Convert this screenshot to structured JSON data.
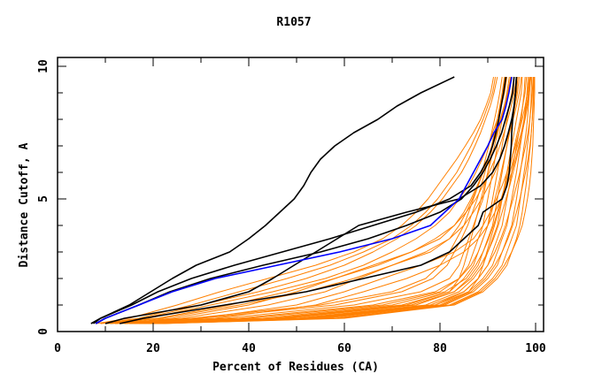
{
  "chart_data": {
    "type": "line",
    "title": "R1057",
    "xlabel": "Percent of Residues (CA)",
    "ylabel": "Distance Cutoff, A",
    "xlim": [
      0,
      101.5
    ],
    "ylim": [
      0,
      10
    ],
    "x_ticks": [
      0,
      20,
      40,
      60,
      80,
      100
    ],
    "x_tick_labels": [
      "0",
      "20",
      "40",
      "60",
      "80",
      "100"
    ],
    "x_minor_step": 10,
    "y_ticks": [
      0,
      5,
      10
    ],
    "y_tick_labels": [
      "0",
      "5",
      "10"
    ],
    "y_minor_step": 1,
    "grid": false,
    "legend": "none",
    "colors": {
      "orange": "#ff8000",
      "black": "#000000",
      "blue": "#0000ff"
    },
    "y_levels": [
      0.3,
      0.5,
      1,
      1.5,
      2,
      2.5,
      3,
      3.5,
      4,
      4.5,
      5,
      5.5,
      6,
      6.5,
      7,
      7.5,
      8,
      8.5,
      9,
      9.6
    ],
    "series": [
      {
        "name": "orange-01",
        "color": "orange",
        "x": [
          12,
          35,
          62,
          76,
          82,
          84,
          85,
          86,
          87,
          88,
          89,
          89.5,
          90,
          90.5,
          91,
          91.5,
          92,
          92.5,
          93,
          93.5
        ]
      },
      {
        "name": "orange-02",
        "color": "orange",
        "x": [
          14,
          40,
          68,
          80,
          84,
          86,
          87,
          88,
          89,
          89.5,
          90,
          90.5,
          91,
          91.5,
          92,
          92.5,
          93,
          93.5,
          94,
          94.5
        ]
      },
      {
        "name": "orange-03",
        "color": "orange",
        "x": [
          15,
          45,
          72,
          82,
          85,
          87,
          88,
          89,
          90,
          90.5,
          91,
          91.5,
          92,
          92.5,
          93,
          93.5,
          94,
          94.5,
          95,
          95.5
        ]
      },
      {
        "name": "orange-04",
        "color": "orange",
        "x": [
          16,
          48,
          75,
          83,
          86,
          88,
          89,
          90,
          91,
          91.5,
          92,
          92.5,
          93,
          93.5,
          94,
          94.5,
          95,
          95.5,
          96,
          96.3
        ]
      },
      {
        "name": "orange-05",
        "color": "orange",
        "x": [
          17,
          50,
          77,
          84,
          87,
          89,
          90,
          91,
          92,
          92.5,
          93,
          93.5,
          94,
          94.5,
          95,
          95.5,
          96,
          96.5,
          97,
          97.2
        ]
      },
      {
        "name": "orange-06",
        "color": "orange",
        "x": [
          18,
          52,
          79,
          85,
          88,
          90,
          91,
          92,
          93,
          93.5,
          94,
          94.5,
          95,
          95.5,
          96,
          96.5,
          97,
          97.3,
          97.6,
          97.8
        ]
      },
      {
        "name": "orange-07",
        "color": "orange",
        "x": [
          19,
          54,
          80,
          86,
          89,
          91,
          92,
          93,
          94,
          94.5,
          95,
          95.5,
          96,
          96.4,
          96.8,
          97.2,
          97.6,
          97.9,
          98.2,
          98.4
        ]
      },
      {
        "name": "orange-08",
        "color": "orange",
        "x": [
          20,
          56,
          81,
          87,
          90,
          92,
          93,
          94,
          95,
          95.5,
          96,
          96.4,
          96.8,
          97.2,
          97.6,
          98,
          98.3,
          98.5,
          98.7,
          98.9
        ]
      },
      {
        "name": "orange-09",
        "color": "orange",
        "x": [
          21,
          58,
          82,
          88,
          91,
          93,
          94,
          95,
          96,
          96.4,
          96.8,
          97.2,
          97.6,
          98,
          98.3,
          98.6,
          98.8,
          99,
          99.1,
          99.2
        ]
      },
      {
        "name": "orange-10",
        "color": "orange",
        "x": [
          22,
          60,
          83,
          89,
          92,
          94,
          95,
          96,
          96.7,
          97.2,
          97.6,
          98,
          98.3,
          98.6,
          98.9,
          99.1,
          99.3,
          99.4,
          99.5,
          99.6
        ]
      },
      {
        "name": "orange-11",
        "color": "orange",
        "x": [
          13,
          38,
          66,
          79,
          84,
          86.5,
          88,
          89,
          90,
          90.8,
          91.5,
          92.2,
          92.8,
          93.4,
          94,
          94.6,
          95.2,
          95.7,
          96.2,
          96.6
        ]
      },
      {
        "name": "orange-12",
        "color": "orange",
        "x": [
          15,
          43,
          70,
          81,
          85.5,
          87.5,
          89,
          90.2,
          91.2,
          92,
          92.8,
          93.6,
          94.3,
          95,
          95.6,
          96.2,
          96.8,
          97.3,
          97.8,
          98.1
        ]
      },
      {
        "name": "orange-13",
        "color": "orange",
        "x": [
          17,
          47,
          74,
          83,
          86.5,
          88.5,
          90,
          91.2,
          92.2,
          93,
          93.8,
          94.6,
          95.3,
          96,
          96.6,
          97.2,
          97.7,
          98.1,
          98.5,
          98.8
        ]
      },
      {
        "name": "orange-14",
        "color": "orange",
        "x": [
          19,
          51,
          78,
          85,
          88,
          90,
          91.5,
          92.7,
          93.7,
          94.5,
          95.3,
          96,
          96.7,
          97.3,
          97.9,
          98.4,
          98.8,
          99.1,
          99.3,
          99.5
        ]
      },
      {
        "name": "orange-15",
        "color": "orange",
        "x": [
          20,
          55,
          80.5,
          86.5,
          89.5,
          91.5,
          93,
          94.2,
          95.2,
          96,
          96.7,
          97.3,
          97.9,
          98.4,
          98.8,
          99.1,
          99.3,
          99.5,
          99.6,
          99.7
        ]
      },
      {
        "name": "orange-16",
        "color": "orange",
        "x": [
          10,
          28,
          55,
          70,
          77,
          80,
          82,
          83.5,
          85,
          86,
          87,
          88,
          88.8,
          89.5,
          90.2,
          90.8,
          91.4,
          92,
          92.5,
          93
        ]
      },
      {
        "name": "orange-17",
        "color": "orange",
        "x": [
          11,
          30,
          58,
          72,
          78.5,
          81.5,
          83,
          84.5,
          85.8,
          86.8,
          87.8,
          88.6,
          89.4,
          90.1,
          90.8,
          91.4,
          92,
          92.6,
          93.1,
          93.6
        ]
      },
      {
        "name": "orange-18",
        "color": "orange",
        "x": [
          12,
          26,
          44,
          56,
          63,
          70,
          78,
          82,
          84,
          85.5,
          86.8,
          88,
          89,
          90,
          91,
          92,
          92.8,
          93.6,
          94.4,
          95
        ]
      },
      {
        "name": "orange-19",
        "color": "orange",
        "x": [
          13,
          24,
          40,
          50,
          58,
          66,
          74,
          80,
          83,
          85,
          86.5,
          87.8,
          89,
          90,
          91,
          91.8,
          92.6,
          93.4,
          94.2,
          94.8
        ]
      },
      {
        "name": "orange-20",
        "color": "orange",
        "x": [
          14,
          30,
          50,
          60,
          68,
          76,
          83,
          87,
          89,
          90.5,
          91.8,
          93,
          94,
          95,
          95.8,
          96.5,
          97.2,
          97.8,
          98.3,
          98.7
        ]
      },
      {
        "name": "orange-21",
        "color": "orange",
        "x": [
          15,
          33,
          54,
          64,
          73,
          80,
          85,
          88,
          90,
          91.5,
          92.8,
          94,
          95,
          95.8,
          96.5,
          97.2,
          97.8,
          98.3,
          98.7,
          99
        ]
      },
      {
        "name": "orange-22",
        "color": "orange",
        "x": [
          9,
          18,
          30,
          42,
          52,
          60,
          66,
          71,
          75,
          78,
          80.5,
          82.5,
          84.5,
          86,
          87.3,
          88.5,
          89.5,
          90.5,
          91.3,
          92
        ]
      },
      {
        "name": "orange-23",
        "color": "orange",
        "x": [
          9,
          17,
          28,
          38,
          48,
          57,
          64,
          70,
          74,
          77,
          79.5,
          81.5,
          83.5,
          85,
          86.5,
          87.8,
          89,
          90,
          91,
          91.6
        ]
      },
      {
        "name": "orange-24",
        "color": "orange",
        "x": [
          10,
          19,
          32,
          45,
          56,
          64,
          70,
          75,
          79,
          82,
          84,
          86,
          87.5,
          88.8,
          90,
          91,
          92,
          92.8,
          93.5,
          94
        ]
      },
      {
        "name": "orange-25",
        "color": "orange",
        "x": [
          8,
          15,
          25,
          34,
          44,
          54,
          62,
          68,
          72,
          75,
          77.5,
          79.5,
          81.5,
          83.5,
          85.3,
          87,
          88.5,
          89.6,
          90.6,
          91.2
        ]
      },
      {
        "name": "orange-26",
        "color": "orange",
        "x": [
          10,
          21,
          36,
          48,
          58,
          67,
          74,
          79,
          83,
          85.5,
          87.5,
          89,
          90.3,
          91.5,
          92.5,
          93.4,
          94.2,
          94.9,
          95.5,
          96
        ]
      },
      {
        "name": "orange-27",
        "color": "orange",
        "x": [
          11,
          22,
          38,
          52,
          62,
          70,
          77,
          82,
          85,
          87,
          88.7,
          90.2,
          91.5,
          92.6,
          93.6,
          94.5,
          95.3,
          96,
          96.6,
          97
        ]
      },
      {
        "name": "orange-28",
        "color": "orange",
        "x": [
          16,
          46,
          73,
          82,
          84,
          85,
          85.8,
          86.5,
          87.2,
          87.9,
          88.6,
          89.3,
          90,
          90.7,
          91.4,
          92.1,
          92.8,
          93.5,
          94.2,
          94.8
        ]
      },
      {
        "name": "orange-29",
        "color": "orange",
        "x": [
          18,
          53,
          79,
          86,
          88,
          89,
          89.8,
          90.6,
          91.4,
          92.2,
          93,
          93.8,
          94.6,
          95.4,
          96.2,
          97,
          97.6,
          98.1,
          98.6,
          99
        ]
      },
      {
        "name": "orange-30",
        "color": "orange",
        "x": [
          21,
          59,
          82.5,
          88.5,
          91.5,
          93.5,
          95,
          96.2,
          97.2,
          97.8,
          98.3,
          98.7,
          99,
          99.2,
          99.4,
          99.5,
          99.6,
          99.7,
          99.8,
          99.8
        ]
      },
      {
        "name": "black-outlier",
        "color": "black",
        "x": [
          7,
          9,
          15,
          19.5,
          24,
          29,
          36,
          40,
          43.5,
          46.5,
          49.5,
          51.5,
          53,
          55,
          58,
          62,
          67,
          71,
          76,
          83
        ]
      },
      {
        "name": "black-2",
        "color": "black",
        "x": [
          7.5,
          9,
          15.5,
          21,
          28,
          37,
          47,
          57,
          66,
          75,
          82,
          86.5,
          88.5,
          90,
          91,
          91.7,
          92.3,
          92.8,
          93.3,
          93.8
        ]
      },
      {
        "name": "black-3",
        "color": "black",
        "x": [
          8,
          10,
          17,
          23.5,
          32,
          43,
          55,
          65,
          73,
          80,
          84.5,
          87,
          89,
          90.5,
          91.8,
          92.9,
          93.7,
          94.5,
          95.2,
          95.5
        ]
      },
      {
        "name": "black-4",
        "color": "black",
        "x": [
          10,
          14,
          30,
          40,
          45,
          49.5,
          54,
          58.5,
          63,
          73,
          84,
          88.5,
          91,
          92.5,
          93.5,
          94.3,
          95,
          95.5,
          95.8,
          96
        ]
      },
      {
        "name": "black-5",
        "color": "black",
        "x": [
          13,
          18,
          35,
          52,
          64,
          76,
          82,
          85,
          88,
          89,
          93,
          94,
          94.5,
          94.7,
          94.9,
          95,
          95.2,
          95.5,
          95.8,
          96
        ]
      },
      {
        "name": "blue",
        "color": "blue",
        "x": [
          8,
          10,
          17,
          24,
          33,
          46,
          59,
          70,
          78,
          81,
          84,
          85.5,
          87,
          88.5,
          90,
          91.3,
          93,
          93.8,
          94.4,
          95
        ]
      }
    ]
  }
}
